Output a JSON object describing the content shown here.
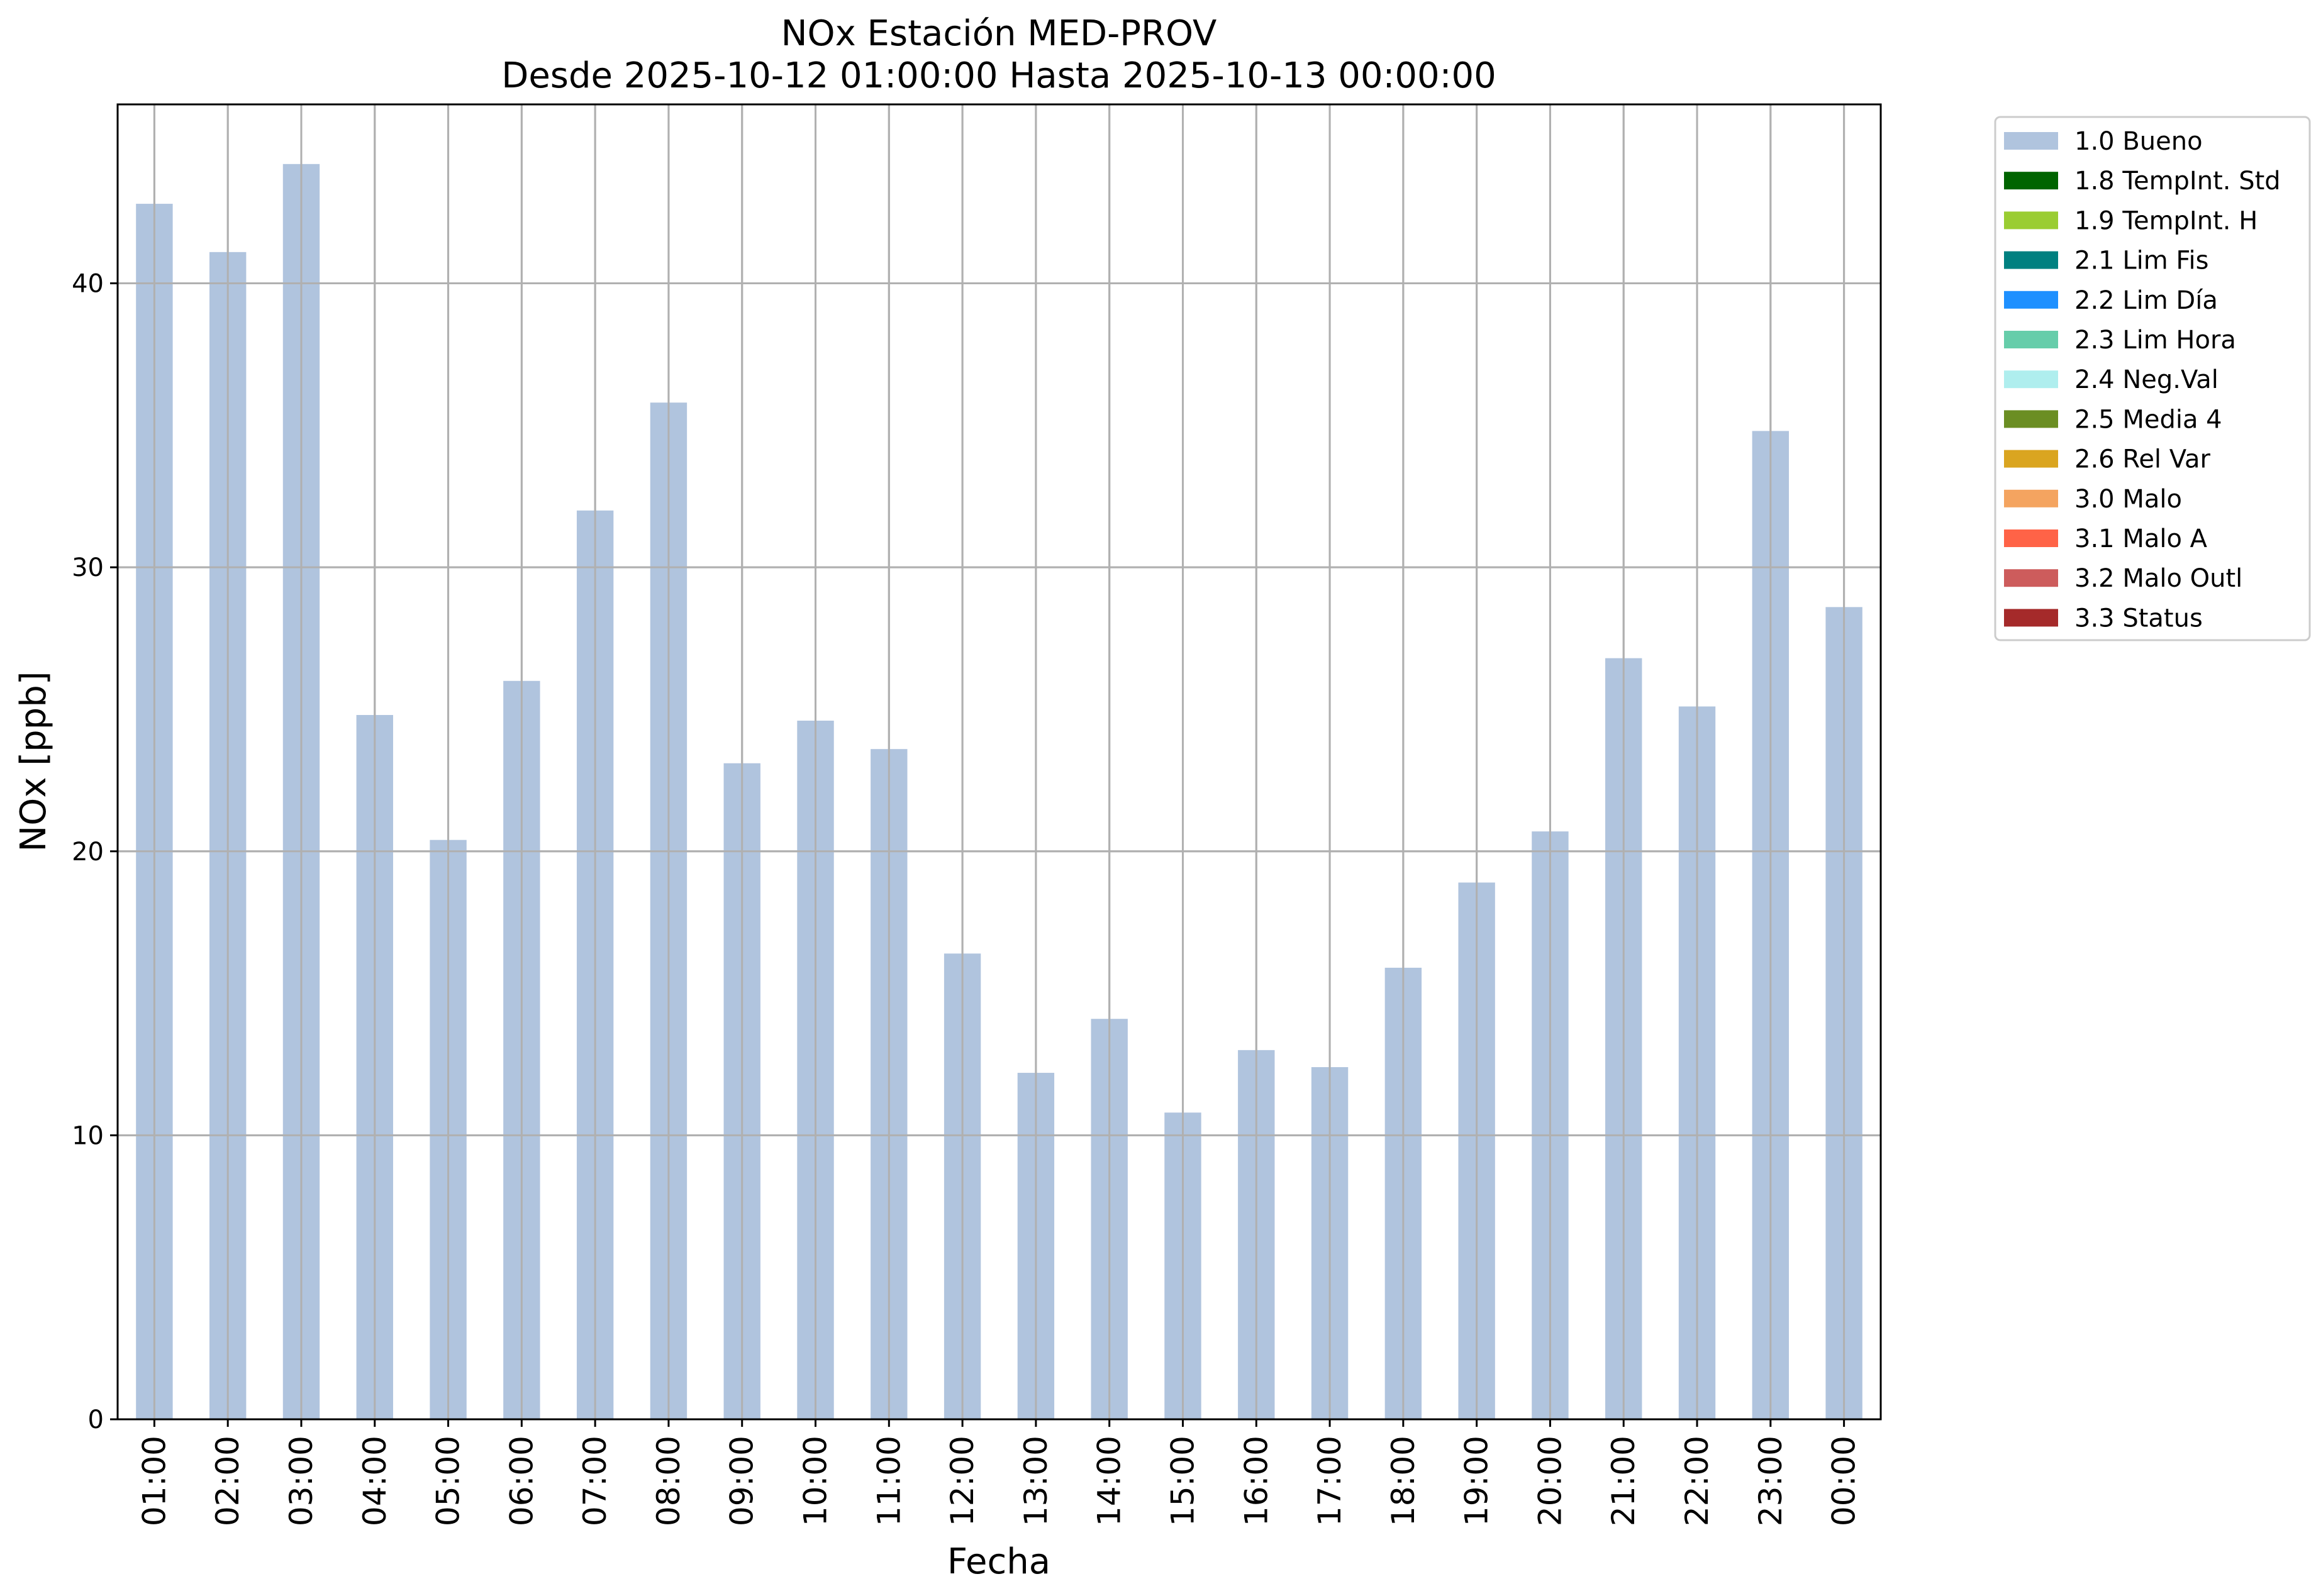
{
  "chart_data": {
    "type": "bar",
    "title": "NOx Estación MED-PROV",
    "subtitle": "Desde 2025-10-12 01:00:00 Hasta 2025-10-13 00:00:00",
    "xlabel": "Fecha",
    "ylabel": "NOx [ppb]",
    "ylim": [
      0,
      46.3
    ],
    "yticks": [
      0,
      10,
      20,
      30,
      40
    ],
    "grid": true,
    "legend_position": "outside-right-top",
    "categories": [
      "01:00",
      "02:00",
      "03:00",
      "04:00",
      "05:00",
      "06:00",
      "07:00",
      "08:00",
      "09:00",
      "10:00",
      "11:00",
      "12:00",
      "13:00",
      "14:00",
      "15:00",
      "16:00",
      "17:00",
      "18:00",
      "19:00",
      "20:00",
      "21:00",
      "22:00",
      "23:00",
      "00:00"
    ],
    "series": [
      {
        "name": "1.0 Bueno",
        "color": "#b0c4de",
        "values": [
          42.8,
          41.1,
          44.2,
          24.8,
          20.4,
          26.0,
          32.0,
          35.8,
          23.1,
          24.6,
          23.6,
          16.4,
          12.2,
          14.1,
          10.8,
          13.0,
          12.4,
          15.9,
          18.9,
          20.7,
          26.8,
          25.1,
          34.8,
          28.6
        ]
      }
    ],
    "legend": [
      {
        "label": "1.0 Bueno",
        "color": "#b0c4de"
      },
      {
        "label": "1.8 TempInt. Std",
        "color": "#006400"
      },
      {
        "label": "1.9 TempInt. H",
        "color": "#9acd32"
      },
      {
        "label": "2.1 Lim Fis",
        "color": "#008080"
      },
      {
        "label": "2.2 Lim Día",
        "color": "#1e90ff"
      },
      {
        "label": "2.3 Lim Hora",
        "color": "#66cdaa"
      },
      {
        "label": "2.4 Neg.Val",
        "color": "#afeeee"
      },
      {
        "label": "2.5 Media 4",
        "color": "#6b8e23"
      },
      {
        "label": "2.6 Rel Var",
        "color": "#daa520"
      },
      {
        "label": "3.0 Malo",
        "color": "#f4a460"
      },
      {
        "label": "3.1 Malo A",
        "color": "#ff6347"
      },
      {
        "label": "3.2 Malo Outl",
        "color": "#cd5c5c"
      },
      {
        "label": "3.3 Status",
        "color": "#a52a2a"
      }
    ],
    "grid_color": "#b0b0b0"
  }
}
